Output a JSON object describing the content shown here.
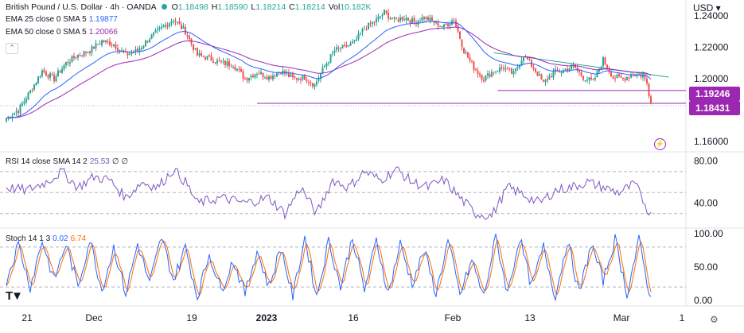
{
  "header": {
    "symbol_title": "British Pound / U.S. Dollar · 4h · OANDA",
    "ohlc": [
      {
        "k": "O",
        "v": "1.18498"
      },
      {
        "k": "H",
        "v": "1.18590"
      },
      {
        "k": "L",
        "v": "1.18214"
      },
      {
        "k": "C",
        "v": "1.18214"
      },
      {
        "k": "Vol",
        "v": "10.182K"
      }
    ],
    "ema25_label": "EMA 25 close 0 SMA 5",
    "ema25_value": "1.19877",
    "ema50_label": "EMA 50 close 0 SMA 5",
    "ema50_value": "1.20066",
    "rsi_label": "RSI 14 close SMA 14 2",
    "rsi_value": "25.53",
    "rsi_extra": "∅ ∅",
    "stoch_label": "Stoch 14 1 3",
    "stoch_k": "0.02",
    "stoch_d": "6.74",
    "currency": "USD",
    "collapse_icon": "chevron-up-icon"
  },
  "colors": {
    "up": "#26a69a",
    "down": "#ef5350",
    "ema25": "#2962ff",
    "ema50": "#9c27b0",
    "rsi": "#7e57c2",
    "stoch_k": "#2962ff",
    "stoch_d": "#ff6d00",
    "trendline": "#26a69a",
    "hline": "#9c27b0"
  },
  "price_badges": {
    "support": "1.19246",
    "current": "1.18431"
  },
  "chart_data": [
    {
      "type": "candlestick",
      "title": "British Pound / U.S. Dollar · 4h · OANDA",
      "ylim": [
        1.155,
        1.245
      ],
      "y_ticks": [
        "1.24000",
        "1.22000",
        "1.20000",
        "1.16000"
      ],
      "x_ticks": [
        "21",
        "Dec",
        "19",
        "2023",
        "16",
        "Feb",
        "13",
        "Mar",
        "1"
      ],
      "close_anchors": [
        [
          0,
          1.175
        ],
        [
          6,
          1.18
        ],
        [
          12,
          1.192
        ],
        [
          18,
          1.205
        ],
        [
          24,
          1.2
        ],
        [
          30,
          1.21
        ],
        [
          36,
          1.215
        ],
        [
          42,
          1.218
        ],
        [
          48,
          1.224
        ],
        [
          54,
          1.222
        ],
        [
          60,
          1.215
        ],
        [
          66,
          1.218
        ],
        [
          72,
          1.226
        ],
        [
          78,
          1.232
        ],
        [
          84,
          1.238
        ],
        [
          90,
          1.23
        ],
        [
          96,
          1.215
        ],
        [
          102,
          1.213
        ],
        [
          108,
          1.21
        ],
        [
          114,
          1.209
        ],
        [
          120,
          1.2
        ],
        [
          126,
          1.204
        ],
        [
          132,
          1.201
        ],
        [
          138,
          1.205
        ],
        [
          144,
          1.2
        ],
        [
          150,
          1.201
        ],
        [
          155,
          1.196
        ],
        [
          160,
          1.208
        ],
        [
          165,
          1.218
        ],
        [
          170,
          1.22
        ],
        [
          175,
          1.223
        ],
        [
          180,
          1.232
        ],
        [
          185,
          1.236
        ],
        [
          190,
          1.242
        ],
        [
          195,
          1.237
        ],
        [
          200,
          1.239
        ],
        [
          205,
          1.236
        ],
        [
          210,
          1.239
        ],
        [
          215,
          1.236
        ],
        [
          220,
          1.233
        ],
        [
          225,
          1.238
        ],
        [
          230,
          1.218
        ],
        [
          235,
          1.207
        ],
        [
          240,
          1.2
        ],
        [
          245,
          1.205
        ],
        [
          250,
          1.207
        ],
        [
          255,
          1.203
        ],
        [
          260,
          1.215
        ],
        [
          265,
          1.207
        ],
        [
          270,
          1.197
        ],
        [
          275,
          1.204
        ],
        [
          280,
          1.205
        ],
        [
          285,
          1.208
        ],
        [
          290,
          1.201
        ],
        [
          295,
          1.198
        ],
        [
          300,
          1.212
        ],
        [
          305,
          1.201
        ],
        [
          310,
          1.2
        ],
        [
          315,
          1.203
        ],
        [
          320,
          1.202
        ],
        [
          322,
          1.197
        ],
        [
          324,
          1.184
        ]
      ],
      "support_line": 1.19246,
      "low_line": 1.18431,
      "current_price": 1.18431,
      "trendline": [
        [
          245,
          1.2165
        ],
        [
          333,
          1.201
        ]
      ]
    },
    {
      "type": "line",
      "title": "RSI 14 close SMA 14 2",
      "ylim": [
        20,
        85
      ],
      "y_ticks": [
        "80.00",
        "40.00"
      ],
      "levels": [
        70,
        50,
        30
      ],
      "anchors": [
        [
          0,
          55
        ],
        [
          10,
          52
        ],
        [
          20,
          60
        ],
        [
          28,
          70
        ],
        [
          36,
          55
        ],
        [
          44,
          65
        ],
        [
          52,
          62
        ],
        [
          60,
          45
        ],
        [
          68,
          60
        ],
        [
          76,
          55
        ],
        [
          84,
          72
        ],
        [
          90,
          60
        ],
        [
          96,
          40
        ],
        [
          108,
          45
        ],
        [
          120,
          40
        ],
        [
          132,
          45
        ],
        [
          140,
          30
        ],
        [
          148,
          55
        ],
        [
          156,
          30
        ],
        [
          164,
          62
        ],
        [
          172,
          55
        ],
        [
          180,
          70
        ],
        [
          188,
          62
        ],
        [
          196,
          72
        ],
        [
          204,
          60
        ],
        [
          212,
          55
        ],
        [
          220,
          62
        ],
        [
          228,
          45
        ],
        [
          236,
          30
        ],
        [
          244,
          28
        ],
        [
          252,
          55
        ],
        [
          260,
          48
        ],
        [
          268,
          40
        ],
        [
          276,
          52
        ],
        [
          284,
          55
        ],
        [
          292,
          60
        ],
        [
          300,
          55
        ],
        [
          308,
          50
        ],
        [
          316,
          58
        ],
        [
          324,
          28
        ]
      ]
    },
    {
      "type": "line",
      "title": "Stoch 14 1 3",
      "ylim": [
        -5,
        105
      ],
      "y_ticks": [
        "100.00",
        "50.00",
        "0.00"
      ],
      "levels": [
        80,
        20
      ],
      "k_anchors": [
        [
          0,
          30
        ],
        [
          6,
          85
        ],
        [
          12,
          20
        ],
        [
          18,
          90
        ],
        [
          24,
          30
        ],
        [
          30,
          85
        ],
        [
          36,
          20
        ],
        [
          42,
          92
        ],
        [
          48,
          15
        ],
        [
          54,
          80
        ],
        [
          60,
          10
        ],
        [
          66,
          85
        ],
        [
          72,
          25
        ],
        [
          78,
          95
        ],
        [
          84,
          30
        ],
        [
          90,
          80
        ],
        [
          96,
          5
        ],
        [
          102,
          70
        ],
        [
          108,
          15
        ],
        [
          114,
          60
        ],
        [
          120,
          10
        ],
        [
          126,
          75
        ],
        [
          132,
          20
        ],
        [
          138,
          80
        ],
        [
          144,
          5
        ],
        [
          150,
          95
        ],
        [
          156,
          5
        ],
        [
          162,
          90
        ],
        [
          168,
          20
        ],
        [
          174,
          95
        ],
        [
          180,
          15
        ],
        [
          186,
          90
        ],
        [
          192,
          10
        ],
        [
          198,
          85
        ],
        [
          204,
          25
        ],
        [
          210,
          75
        ],
        [
          216,
          10
        ],
        [
          222,
          90
        ],
        [
          228,
          8
        ],
        [
          234,
          60
        ],
        [
          240,
          5
        ],
        [
          246,
          95
        ],
        [
          252,
          10
        ],
        [
          258,
          95
        ],
        [
          264,
          20
        ],
        [
          270,
          80
        ],
        [
          276,
          5
        ],
        [
          282,
          90
        ],
        [
          288,
          10
        ],
        [
          294,
          85
        ],
        [
          300,
          30
        ],
        [
          306,
          92
        ],
        [
          312,
          10
        ],
        [
          318,
          90
        ],
        [
          324,
          0
        ]
      ]
    }
  ]
}
